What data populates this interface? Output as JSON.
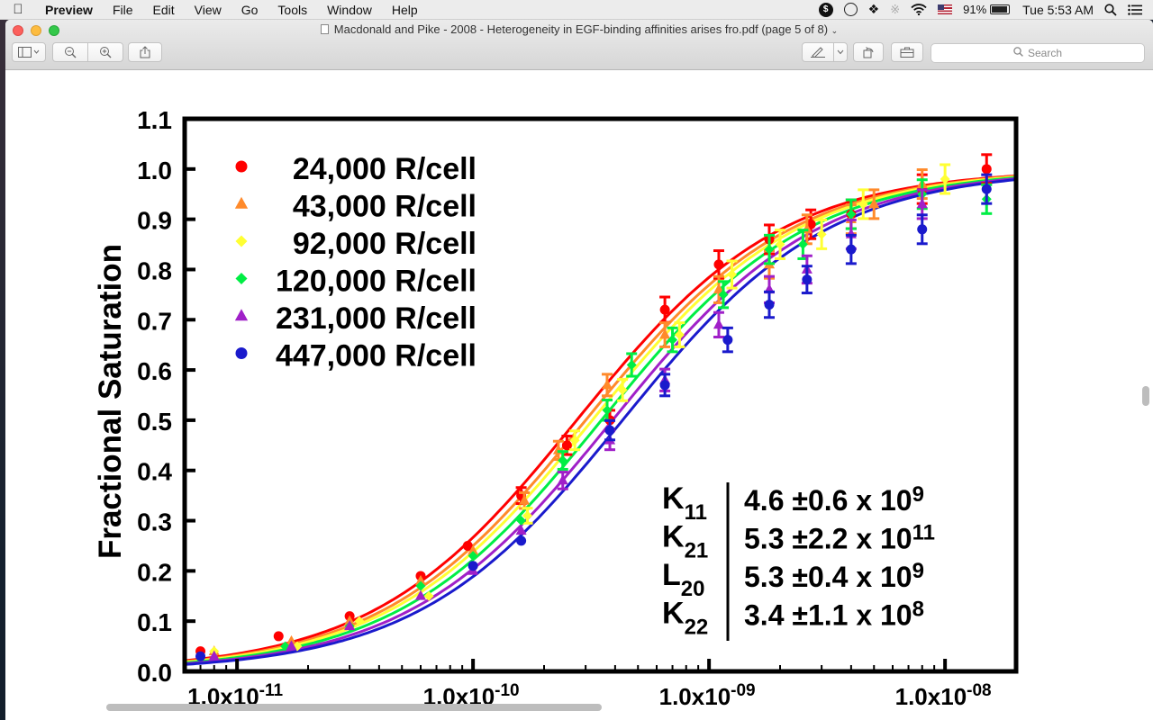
{
  "menubar": {
    "app_name": "Preview",
    "items": [
      "File",
      "Edit",
      "View",
      "Go",
      "Tools",
      "Window",
      "Help"
    ],
    "battery": "91%",
    "clock": "Tue 5:53 AM"
  },
  "window": {
    "title": "Macdonald and Pike - 2008 - Heterogeneity in EGF-binding affinities arises fro.pdf (page 5 of 8)",
    "search_placeholder": "Search"
  },
  "chart_data": {
    "type": "scatter",
    "ylabel": "Fractional Saturation",
    "xlabel": "",
    "xscale": "log",
    "xlim": [
      6e-12,
      2e-08
    ],
    "ylim": [
      0.0,
      1.1
    ],
    "y_ticks": [
      "0.0",
      "0.1",
      "0.2",
      "0.3",
      "0.4",
      "0.5",
      "0.6",
      "0.7",
      "0.8",
      "0.9",
      "1.0",
      "1.1"
    ],
    "x_ticks": [
      {
        "value": 1e-11,
        "base": "1.0x10",
        "exp": "-11"
      },
      {
        "value": 1e-10,
        "base": "1.0x10",
        "exp": "-10"
      },
      {
        "value": 1e-09,
        "base": "1.0x10",
        "exp": "-09"
      },
      {
        "value": 1e-08,
        "base": "1.0x10",
        "exp": "-08"
      }
    ],
    "legend_position": "top-left",
    "series": [
      {
        "name": "24,000 R/cell",
        "color": "#ff0000",
        "marker": "circle",
        "kd": 2.75e-10,
        "x": [
          7e-12,
          1.5e-11,
          3e-11,
          6e-11,
          9.5e-11,
          1.6e-10,
          2.5e-10,
          3.8e-10,
          6.5e-10,
          1.1e-09,
          1.8e-09,
          2.7e-09,
          4e-09,
          8e-09,
          1.5e-08
        ],
        "y": [
          0.04,
          0.07,
          0.11,
          0.19,
          0.25,
          0.35,
          0.45,
          0.5,
          0.72,
          0.81,
          0.86,
          0.89,
          0.91,
          0.96,
          1.0
        ]
      },
      {
        "name": "43,000 R/cell",
        "color": "#ff8a2b",
        "marker": "triangle",
        "kd": 3e-10,
        "x": [
          8e-12,
          1.7e-11,
          3e-11,
          6e-11,
          1e-10,
          1.65e-10,
          2.3e-10,
          3.7e-10,
          6.5e-10,
          1.1e-09,
          1.8e-09,
          2.6e-09,
          4e-09,
          5e-09,
          8e-09
        ],
        "y": [
          0.04,
          0.06,
          0.1,
          0.18,
          0.24,
          0.34,
          0.44,
          0.57,
          0.67,
          0.76,
          0.81,
          0.88,
          0.9,
          0.93,
          0.97
        ]
      },
      {
        "name": "92,000 R/cell",
        "color": "#ffff33",
        "marker": "diamond",
        "kd": 3.2e-10,
        "x": [
          8e-12,
          1.8e-11,
          3.3e-11,
          6.5e-11,
          1e-10,
          1.7e-10,
          2.7e-10,
          4.3e-10,
          7.5e-10,
          1.25e-09,
          2e-09,
          3e-09,
          4.5e-09,
          1e-08
        ],
        "y": [
          0.04,
          0.05,
          0.1,
          0.15,
          0.23,
          0.31,
          0.46,
          0.56,
          0.67,
          0.79,
          0.85,
          0.87,
          0.93,
          0.98
        ]
      },
      {
        "name": "120,000 R/cell",
        "color": "#00ee44",
        "marker": "diamond",
        "kd": 3.5e-10,
        "x": [
          7e-12,
          1.6e-11,
          3e-11,
          6e-11,
          1e-10,
          1.6e-10,
          2.4e-10,
          3.7e-10,
          4.7e-10,
          7e-10,
          1.15e-09,
          1.8e-09,
          2.5e-09,
          4e-09,
          8e-09,
          1.5e-08
        ],
        "y": [
          0.03,
          0.05,
          0.09,
          0.17,
          0.23,
          0.3,
          0.42,
          0.52,
          0.61,
          0.66,
          0.75,
          0.84,
          0.85,
          0.91,
          0.95,
          0.94
        ]
      },
      {
        "name": "231,000 R/cell",
        "color": "#a020c8",
        "marker": "triangle",
        "kd": 3.9e-10,
        "x": [
          8e-12,
          1.7e-11,
          3e-11,
          6e-11,
          1e-10,
          1.6e-10,
          2.4e-10,
          3.8e-10,
          6.5e-10,
          1.1e-09,
          1.8e-09,
          2.6e-09,
          4e-09,
          8e-09
        ],
        "y": [
          0.03,
          0.05,
          0.09,
          0.15,
          0.2,
          0.28,
          0.38,
          0.46,
          0.58,
          0.69,
          0.76,
          0.8,
          0.87,
          0.93
        ]
      },
      {
        "name": "447,000 R/cell",
        "color": "#1a1acc",
        "marker": "circle",
        "kd": 4.3e-10,
        "x": [
          7e-12,
          1e-10,
          1.6e-10,
          3.8e-10,
          6.5e-10,
          1.2e-09,
          1.8e-09,
          2.6e-09,
          4e-09,
          8e-09,
          1.5e-08
        ],
        "y": [
          0.03,
          0.21,
          0.26,
          0.48,
          0.57,
          0.66,
          0.73,
          0.78,
          0.84,
          0.88,
          0.96
        ]
      }
    ],
    "parameter_table": [
      {
        "symbol": "K",
        "sub": "11",
        "value": "4.6 ±0.6 x 10",
        "exp": "9"
      },
      {
        "symbol": "K",
        "sub": "21",
        "value": "5.3 ±2.2 x 10",
        "exp": "11"
      },
      {
        "symbol": "L",
        "sub": "20",
        "value": "5.3 ±0.4 x 10",
        "exp": "9"
      },
      {
        "symbol": "K",
        "sub": "22",
        "value": "3.4 ±1.1 x 10",
        "exp": "8"
      }
    ]
  }
}
